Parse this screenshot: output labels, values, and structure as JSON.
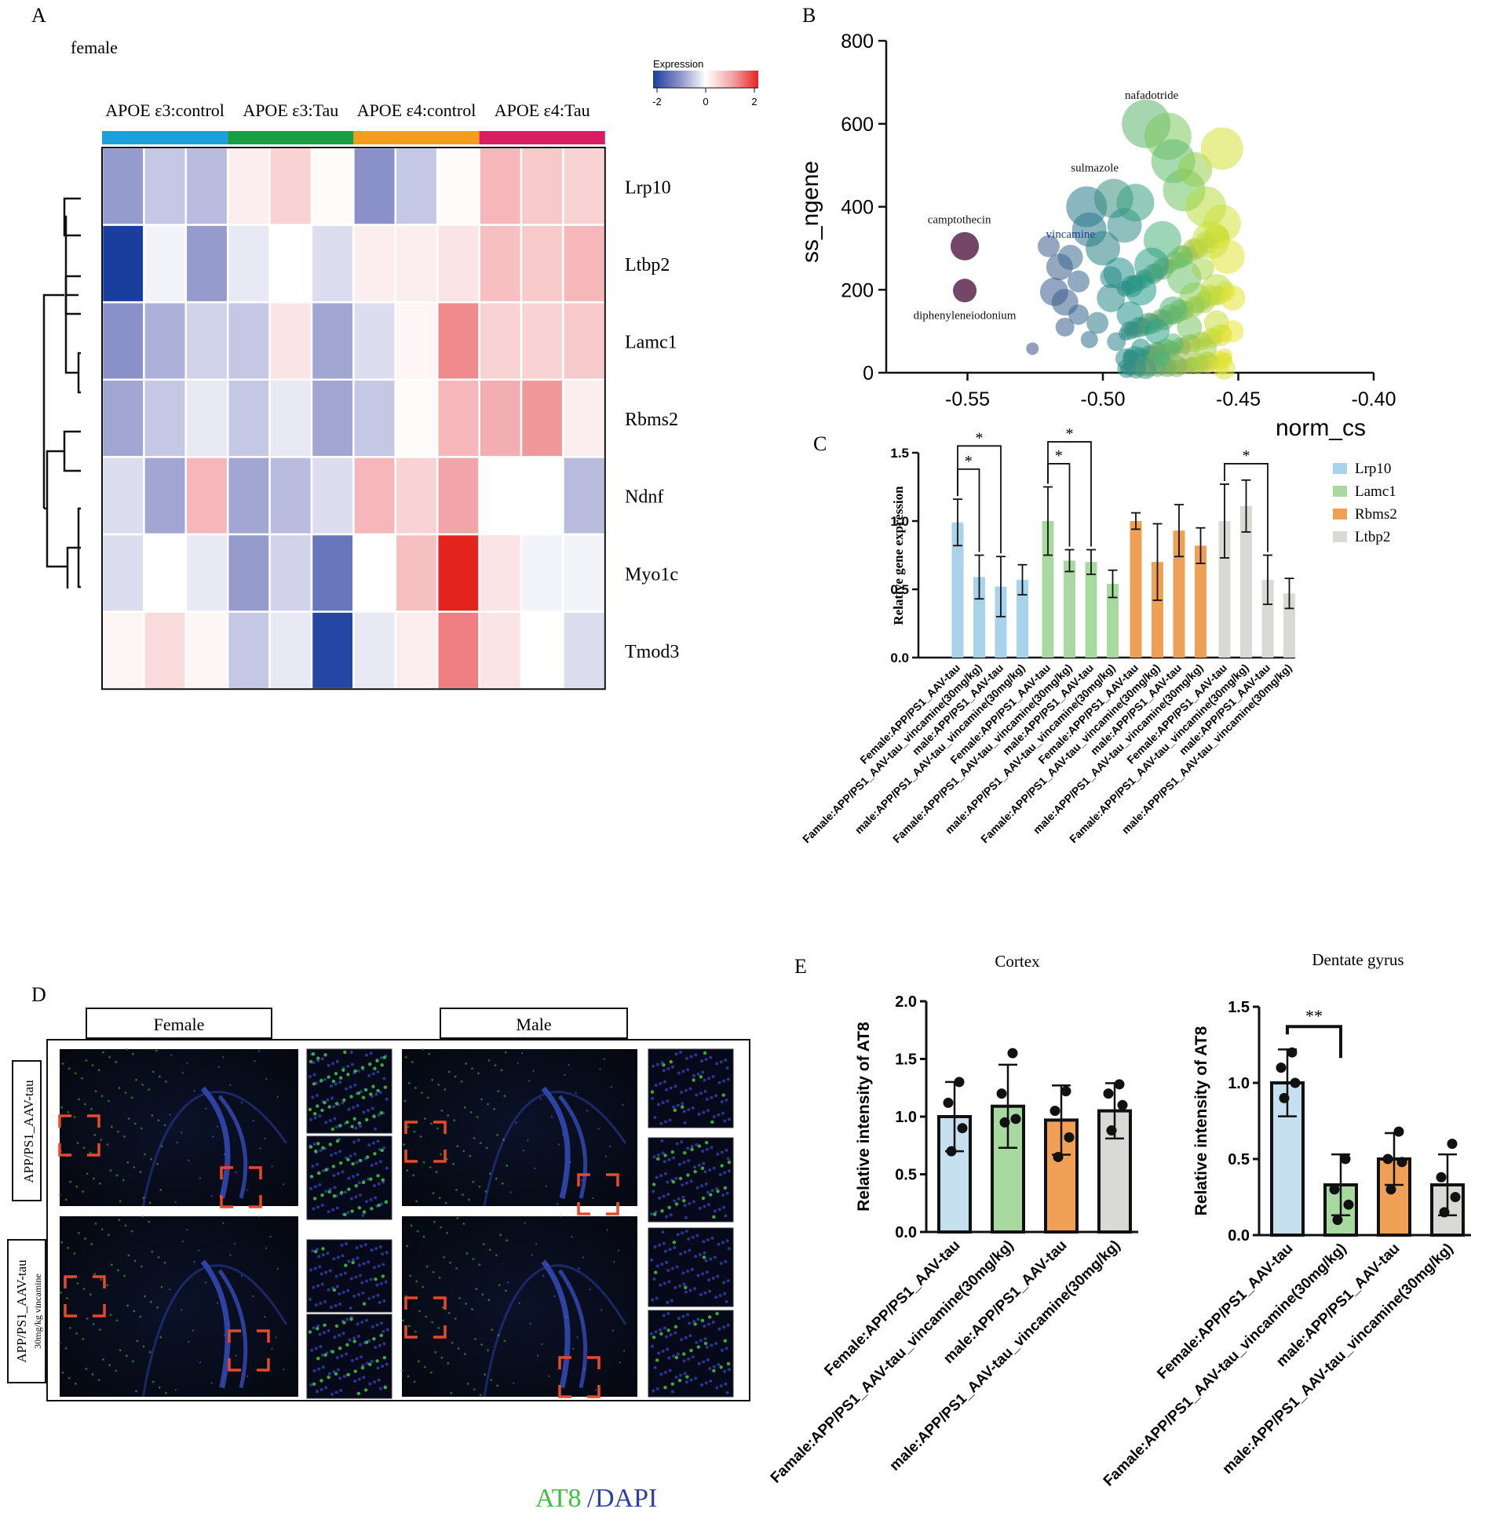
{
  "panels": {
    "A": {
      "label": "A",
      "subtitle": "female",
      "legend": {
        "title": "Expression",
        "ticks": [
          "-2",
          "0",
          "2"
        ]
      },
      "groups": [
        {
          "label": "APOE ε3:control",
          "color": "#1aa0dd"
        },
        {
          "label": "APOE ε3:Tau",
          "color": "#16a043"
        },
        {
          "label": "APOE ε4:control",
          "color": "#f39c1e"
        },
        {
          "label": "APOE ε4:Tau",
          "color": "#d81e63"
        }
      ],
      "genes": [
        "Lrp10",
        "Ltbp2",
        "Lamc1",
        "Rbms2",
        "Ndnf",
        "Myo1c",
        "Tmod3"
      ],
      "matrix": [
        [
          -0.9,
          -0.5,
          -0.6,
          0.2,
          0.5,
          0.05,
          -1.0,
          -0.5,
          0.05,
          0.8,
          0.6,
          0.5
        ],
        [
          -2.0,
          -0.1,
          -0.9,
          -0.2,
          0.0,
          -0.3,
          0.2,
          0.2,
          0.3,
          0.7,
          0.6,
          0.8
        ],
        [
          -1.0,
          -0.7,
          -0.4,
          -0.5,
          0.3,
          -0.8,
          -0.3,
          0.1,
          1.2,
          0.5,
          0.5,
          0.6
        ],
        [
          -0.8,
          -0.5,
          -0.2,
          -0.5,
          -0.2,
          -0.8,
          -0.5,
          0.05,
          0.8,
          0.9,
          1.1,
          0.2
        ],
        [
          -0.3,
          -0.8,
          0.8,
          -0.8,
          -0.6,
          -0.3,
          0.8,
          0.5,
          1.0,
          0.0,
          0.0,
          -0.6
        ],
        [
          -0.3,
          0.0,
          -0.2,
          -0.9,
          -0.4,
          -1.3,
          0.0,
          0.7,
          2.0,
          0.3,
          -0.1,
          -0.1
        ],
        [
          0.1,
          0.4,
          0.1,
          -0.5,
          -0.2,
          -1.9,
          -0.2,
          0.2,
          1.3,
          0.3,
          0.0,
          -0.3
        ]
      ]
    },
    "B": {
      "label": "B",
      "chart_data": {
        "type": "scatter",
        "xlabel": "norm_cs",
        "ylabel": "ss_ngene",
        "xlim": [
          -0.58,
          -0.4
        ],
        "ylim": [
          0,
          800
        ],
        "xticks": [
          "-0.55",
          "-0.50",
          "-0.45",
          "-0.40"
        ],
        "yticks": [
          "0",
          "200",
          "400",
          "600",
          "800"
        ],
        "annotations": [
          {
            "text": "nafadotride",
            "x": -0.482,
            "y": 660
          },
          {
            "text": "sulmazole",
            "x": -0.503,
            "y": 485
          },
          {
            "text": "camptothecin",
            "x": -0.553,
            "y": 360
          },
          {
            "text": "vincamine",
            "x": -0.521,
            "y": 325
          },
          {
            "text": "diphenyleneiodonium",
            "x": -0.551,
            "y": 130
          }
        ],
        "points": [
          {
            "x": -0.551,
            "y": 305,
            "s": 18,
            "c": "#6e3e60"
          },
          {
            "x": -0.551,
            "y": 198,
            "s": 15,
            "c": "#6e3e60"
          },
          {
            "x": -0.526,
            "y": 58,
            "s": 8,
            "c": "#3e4e8a"
          },
          {
            "x": -0.52,
            "y": 305,
            "s": 14,
            "c": "#3f5c8e"
          },
          {
            "x": -0.516,
            "y": 255,
            "s": 17,
            "c": "#3a5f8b"
          },
          {
            "x": -0.512,
            "y": 278,
            "s": 16,
            "c": "#3a6a8e"
          },
          {
            "x": -0.514,
            "y": 170,
            "s": 17,
            "c": "#3c5e8c"
          },
          {
            "x": -0.518,
            "y": 195,
            "s": 18,
            "c": "#3a5c8e"
          },
          {
            "x": -0.509,
            "y": 140,
            "s": 13,
            "c": "#35658e"
          },
          {
            "x": -0.506,
            "y": 400,
            "s": 26,
            "c": "#2a7a8a"
          },
          {
            "x": -0.505,
            "y": 345,
            "s": 22,
            "c": "#2a788c"
          },
          {
            "x": -0.5,
            "y": 300,
            "s": 22,
            "c": "#2a8285"
          },
          {
            "x": -0.496,
            "y": 420,
            "s": 25,
            "c": "#3a9080"
          },
          {
            "x": -0.494,
            "y": 240,
            "s": 20,
            "c": "#22908a"
          },
          {
            "x": -0.492,
            "y": 355,
            "s": 22,
            "c": "#2f8d88"
          },
          {
            "x": -0.488,
            "y": 410,
            "s": 24,
            "c": "#3aa082"
          },
          {
            "x": -0.484,
            "y": 600,
            "s": 31,
            "c": "#5cb56e"
          },
          {
            "x": -0.476,
            "y": 570,
            "s": 30,
            "c": "#7dc860"
          },
          {
            "x": -0.474,
            "y": 510,
            "s": 28,
            "c": "#5cbb6d"
          },
          {
            "x": -0.47,
            "y": 440,
            "s": 27,
            "c": "#6dc264"
          },
          {
            "x": -0.466,
            "y": 490,
            "s": 22,
            "c": "#96d04e"
          },
          {
            "x": -0.456,
            "y": 540,
            "s": 27,
            "c": "#d6e238"
          },
          {
            "x": -0.462,
            "y": 400,
            "s": 26,
            "c": "#b8dc3e"
          },
          {
            "x": -0.456,
            "y": 360,
            "s": 24,
            "c": "#d2e23a"
          },
          {
            "x": -0.46,
            "y": 320,
            "s": 24,
            "c": "#c4e03c"
          },
          {
            "x": -0.454,
            "y": 280,
            "s": 22,
            "c": "#e0e436"
          },
          {
            "x": -0.478,
            "y": 320,
            "s": 24,
            "c": "#4cb27c"
          },
          {
            "x": -0.482,
            "y": 260,
            "s": 22,
            "c": "#2fa08a"
          },
          {
            "x": -0.486,
            "y": 200,
            "s": 20,
            "c": "#1f9a8a"
          },
          {
            "x": -0.47,
            "y": 230,
            "s": 22,
            "c": "#6cc26a"
          },
          {
            "x": -0.466,
            "y": 180,
            "s": 20,
            "c": "#8ccd58"
          },
          {
            "x": -0.458,
            "y": 200,
            "s": 20,
            "c": "#bcdc40"
          },
          {
            "x": -0.474,
            "y": 150,
            "s": 18,
            "c": "#4eb77a"
          },
          {
            "x": -0.49,
            "y": 140,
            "s": 17,
            "c": "#25928a"
          },
          {
            "x": -0.497,
            "y": 180,
            "s": 18,
            "c": "#2a8a88"
          },
          {
            "x": -0.502,
            "y": 120,
            "s": 14,
            "c": "#2e7a8c"
          },
          {
            "x": -0.48,
            "y": 100,
            "s": 16,
            "c": "#2aa286"
          },
          {
            "x": -0.468,
            "y": 110,
            "s": 16,
            "c": "#78c662"
          },
          {
            "x": -0.458,
            "y": 120,
            "s": 16,
            "c": "#c6de3c"
          },
          {
            "x": -0.462,
            "y": 60,
            "s": 14,
            "c": "#a4d44a"
          },
          {
            "x": -0.474,
            "y": 70,
            "s": 13,
            "c": "#56b974"
          },
          {
            "x": -0.486,
            "y": 60,
            "s": 12,
            "c": "#26948a"
          },
          {
            "x": -0.495,
            "y": 75,
            "s": 12,
            "c": "#2c8488"
          },
          {
            "x": -0.505,
            "y": 80,
            "s": 11,
            "c": "#306e8c"
          },
          {
            "x": -0.455,
            "y": 40,
            "s": 10,
            "c": "#e2e434"
          },
          {
            "x": -0.465,
            "y": 25,
            "s": 9,
            "c": "#a8d648"
          },
          {
            "x": -0.478,
            "y": 35,
            "s": 10,
            "c": "#48b47c"
          },
          {
            "x": -0.49,
            "y": 40,
            "s": 9,
            "c": "#2a9088"
          },
          {
            "x": -0.452,
            "y": 180,
            "s": 16,
            "c": "#e6e432"
          },
          {
            "x": -0.452,
            "y": 100,
            "s": 14,
            "c": "#e8e632"
          },
          {
            "x": -0.509,
            "y": 220,
            "s": 14,
            "c": "#36648e"
          },
          {
            "x": -0.514,
            "y": 110,
            "s": 12,
            "c": "#3b5c8d"
          },
          {
            "x": -0.497,
            "y": 230,
            "s": 14,
            "c": "#2c8888"
          },
          {
            "x": -0.471,
            "y": 280,
            "s": 14,
            "c": "#6ac268"
          },
          {
            "x": -0.463,
            "y": 250,
            "s": 14,
            "c": "#a6d64a"
          }
        ]
      }
    },
    "C": {
      "label": "C",
      "chart_data": {
        "type": "bar",
        "ylabel": "Relative gene expression",
        "ylim": [
          0,
          1.5
        ],
        "yticks": [
          "0.0",
          "0.5",
          "1.0",
          "1.5"
        ],
        "categories": [
          "Female:APP/PS1_AAV-tau",
          "Famale:APP/PS1_AAV-tau_vincamine(30mg/kg)",
          "male:APP/PS1_AAV-tau",
          "male:APP/PS1_AAV-tau_vincamine(30mg/kg)"
        ],
        "series": [
          {
            "name": "Lrp10",
            "color": "#a9d3ea",
            "values": [
              0.99,
              0.59,
              0.52,
              0.57
            ],
            "errors": [
              0.17,
              0.16,
              0.22,
              0.11
            ]
          },
          {
            "name": "Lamc1",
            "color": "#a8d9a0",
            "values": [
              1.0,
              0.71,
              0.7,
              0.54
            ],
            "errors": [
              0.25,
              0.08,
              0.09,
              0.1
            ]
          },
          {
            "name": "Rbms2",
            "color": "#f0a055",
            "values": [
              1.0,
              0.7,
              0.93,
              0.82
            ],
            "errors": [
              0.06,
              0.28,
              0.19,
              0.13
            ]
          },
          {
            "name": "Ltbp2",
            "color": "#d9d9d6",
            "values": [
              1.0,
              1.11,
              0.57,
              0.47
            ],
            "errors": [
              0.27,
              0.19,
              0.18,
              0.11
            ]
          }
        ],
        "significance": [
          {
            "series": 0,
            "from": 0,
            "to": 1,
            "label": "*",
            "level": 1.38
          },
          {
            "series": 0,
            "from": 0,
            "to": 2,
            "label": "*",
            "level": 1.55
          },
          {
            "series": 1,
            "from": 0,
            "to": 1,
            "label": "*",
            "level": 1.42
          },
          {
            "series": 1,
            "from": 0,
            "to": 2,
            "label": "*",
            "level": 1.58
          },
          {
            "series": 3,
            "from": 0,
            "to": 2,
            "label": "*",
            "level": 1.42
          }
        ]
      }
    },
    "D": {
      "label": "D",
      "columns": [
        "Female",
        "Male"
      ],
      "rows": [
        "APP/PS1_AAV-tau",
        "APP/PS1_AAV-tau"
      ],
      "row2_sub": "30mg/kg vincamine",
      "stain": {
        "green": "AT8",
        "sep": "/",
        "blue": "DAPI"
      },
      "colors": {
        "green": "#3fbf3f",
        "blue": "#2b3fa8",
        "box": "#e8492a"
      }
    },
    "E": {
      "label": "E",
      "categories": [
        "Female:APP/PS1_AAV-tau",
        "Famale:APP/PS1_AAV-tau_vincamine(30mg/kg)",
        "male:APP/PS1_AAV-tau",
        "male:APP/PS1_AAV-tau_vincamine(30mg/kg)"
      ],
      "colors": [
        "#c7e0f0",
        "#a8d9a0",
        "#f0a055",
        "#d9d9d6"
      ],
      "chart_data": [
        {
          "type": "bar",
          "title": "Cortex",
          "ylabel": "Relative intensity of AT8",
          "ylim": [
            0,
            2.0
          ],
          "yticks": [
            "0.0",
            "0.5",
            "1.0",
            "1.5",
            "2.0"
          ],
          "values": [
            1.0,
            1.09,
            0.97,
            1.05
          ],
          "errors": [
            0.3,
            0.36,
            0.3,
            0.24
          ],
          "points": [
            [
              1.3,
              1.12,
              0.9,
              0.7
            ],
            [
              1.55,
              1.2,
              0.98,
              0.95
            ],
            [
              1.22,
              1.05,
              0.82,
              0.65
            ],
            [
              1.28,
              1.2,
              1.1,
              0.88
            ]
          ],
          "significance": []
        },
        {
          "type": "bar",
          "title": "Dentate gyrus",
          "ylabel": "Relative intensity of AT8",
          "ylim": [
            0,
            1.5
          ],
          "yticks": [
            "0.0",
            "0.5",
            "1.0",
            "1.5"
          ],
          "values": [
            1.0,
            0.33,
            0.5,
            0.33
          ],
          "errors": [
            0.22,
            0.2,
            0.17,
            0.2
          ],
          "points": [
            [
              1.2,
              1.1,
              1.0,
              0.9
            ],
            [
              0.5,
              0.3,
              0.2,
              0.1
            ],
            [
              0.68,
              0.5,
              0.48,
              0.3
            ],
            [
              0.6,
              0.38,
              0.25,
              0.15
            ]
          ],
          "significance": [
            {
              "from": 0,
              "to": 1,
              "label": "**",
              "level": 1.37
            }
          ]
        }
      ]
    }
  }
}
